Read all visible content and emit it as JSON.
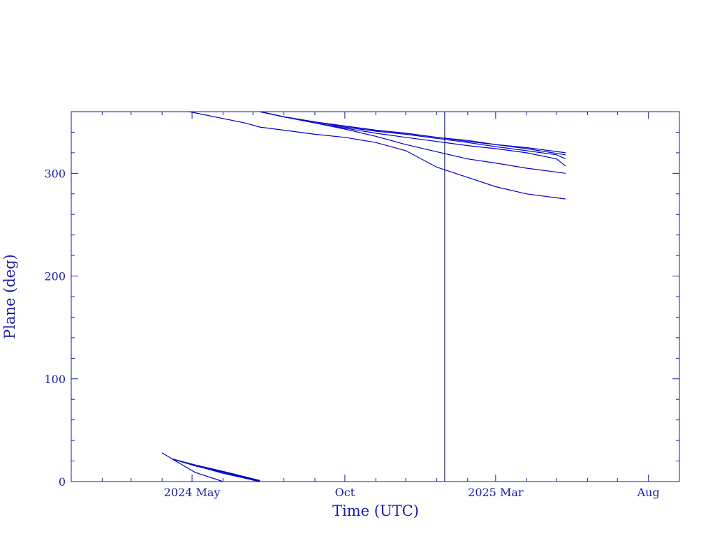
{
  "chart_data": {
    "type": "line",
    "title": "",
    "xlabel": "Time (UTC)",
    "ylabel": "Plane (deg)",
    "xlim": [
      "2024-01-01",
      "2025-09-01"
    ],
    "ylim": [
      0,
      360
    ],
    "x_ticks": [
      {
        "label": "2024 May",
        "x": "2024-05-01"
      },
      {
        "label": "Oct",
        "x": "2024-10-01"
      },
      {
        "label": "2025 Mar",
        "x": "2025-03-01"
      },
      {
        "label": "Aug",
        "x": "2025-08-01"
      }
    ],
    "y_ticks": [
      {
        "label": "0",
        "y": 0
      },
      {
        "label": "100",
        "y": 100
      },
      {
        "label": "200",
        "y": 200
      },
      {
        "label": "300",
        "y": 300
      }
    ],
    "grid": false,
    "colors": {
      "axis": "#1a1aa6",
      "line": "#0000cc",
      "marker": "#000066",
      "text": "#1a1aa6"
    },
    "vertical_marker": {
      "x": "2025-01-09"
    },
    "series": [
      {
        "x": [
          "2024-04-28",
          "2024-06-23",
          "2024-07-08",
          "2024-08-01",
          "2024-09-01",
          "2024-10-01",
          "2024-11-01",
          "2024-12-01",
          "2025-01-01",
          "2025-02-01",
          "2025-03-01",
          "2025-04-01",
          "2025-05-10"
        ],
        "values": [
          360,
          349,
          345,
          342,
          338,
          335,
          330,
          322,
          306,
          296,
          287,
          280,
          275
        ]
      },
      {
        "x": [
          "2024-07-08",
          "2024-08-01",
          "2024-09-01",
          "2024-10-01",
          "2024-11-01",
          "2024-12-01",
          "2025-01-01",
          "2025-02-01",
          "2025-03-01",
          "2025-04-01",
          "2025-05-10"
        ],
        "values": [
          360,
          355,
          349,
          343,
          336,
          328,
          321,
          314,
          310,
          305,
          300
        ]
      },
      {
        "x": [
          "2024-07-08",
          "2024-08-01",
          "2024-09-01",
          "2024-10-01",
          "2024-11-01",
          "2024-12-01",
          "2025-01-01",
          "2025-02-01",
          "2025-03-01",
          "2025-04-01",
          "2025-05-01",
          "2025-05-10"
        ],
        "values": [
          360,
          355,
          349,
          344,
          339,
          335,
          331,
          327,
          324,
          320,
          314,
          307
        ]
      },
      {
        "x": [
          "2024-07-08",
          "2024-08-01",
          "2024-09-01",
          "2024-10-01",
          "2024-11-01",
          "2024-12-01",
          "2025-01-01",
          "2025-02-01",
          "2025-03-01",
          "2025-04-01",
          "2025-05-01",
          "2025-05-10"
        ],
        "values": [
          360,
          355,
          350,
          345,
          341,
          338,
          334,
          330,
          326,
          322,
          318,
          314
        ]
      },
      {
        "x": [
          "2024-07-08",
          "2024-08-01",
          "2024-09-01",
          "2024-10-01",
          "2024-11-01",
          "2024-12-01",
          "2025-01-01",
          "2025-02-01",
          "2025-03-01",
          "2025-04-01",
          "2025-05-10"
        ],
        "values": [
          360,
          355,
          350,
          346,
          342,
          339,
          335,
          331,
          328,
          324,
          318
        ]
      },
      {
        "x": [
          "2024-07-08",
          "2024-08-01",
          "2024-09-01",
          "2024-10-01",
          "2024-11-01",
          "2024-12-01",
          "2025-01-01",
          "2025-02-01",
          "2025-03-01",
          "2025-04-01",
          "2025-05-10"
        ],
        "values": [
          360,
          355,
          350,
          346,
          342,
          339,
          335,
          332,
          328,
          325,
          320
        ]
      },
      {
        "x": [
          "2024-04-01",
          "2024-04-11",
          "2024-06-01",
          "2024-07-08"
        ],
        "values": [
          28,
          22,
          8,
          0
        ]
      },
      {
        "x": [
          "2024-04-11",
          "2024-05-05",
          "2024-06-01",
          "2024-07-08"
        ],
        "values": [
          22,
          15,
          9,
          0
        ]
      },
      {
        "x": [
          "2024-04-11",
          "2024-05-05",
          "2024-06-01",
          "2024-07-08"
        ],
        "values": [
          22,
          15.5,
          9.5,
          0.5
        ]
      },
      {
        "x": [
          "2024-04-11",
          "2024-05-05",
          "2024-06-01",
          "2024-07-08"
        ],
        "values": [
          22,
          16,
          10,
          1
        ]
      },
      {
        "x": [
          "2024-04-11",
          "2024-05-04",
          "2024-06-01"
        ],
        "values": [
          22,
          9,
          0
        ]
      }
    ]
  }
}
